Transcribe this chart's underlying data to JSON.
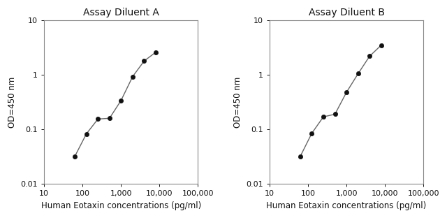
{
  "panel_A": {
    "title": "Assay Diluent A",
    "x": [
      62.5,
      125,
      250,
      500,
      1000,
      2000,
      4000,
      8000
    ],
    "y": [
      0.032,
      0.083,
      0.155,
      0.16,
      0.34,
      0.93,
      1.8,
      2.6
    ]
  },
  "panel_B": {
    "title": "Assay Diluent B",
    "x": [
      62.5,
      125,
      250,
      500,
      1000,
      2000,
      4000,
      8000
    ],
    "y": [
      0.032,
      0.085,
      0.17,
      0.19,
      0.48,
      1.05,
      2.2,
      3.5
    ]
  },
  "xlabel": "Human Eotaxin concentrations (pg/ml)",
  "ylabel": "OD=450 nm",
  "xlim": [
    10,
    100000
  ],
  "ylim": [
    0.01,
    10
  ],
  "xticks": [
    10,
    100,
    1000,
    10000,
    100000
  ],
  "xticklabels": [
    "10",
    "100",
    "1,000",
    "10,000",
    "100,000"
  ],
  "yticks": [
    0.01,
    0.1,
    1,
    10
  ],
  "yticklabels": [
    "0.01",
    "0.1",
    "1",
    "10"
  ],
  "line_color": "#666666",
  "marker_color": "#111111",
  "title_color": "#111111",
  "label_color": "#111111",
  "tick_color": "#111111",
  "bg_color": "#ffffff",
  "marker_size": 4.5,
  "line_width": 1.0,
  "title_fontsize": 10,
  "label_fontsize": 8.5,
  "tick_fontsize": 8
}
